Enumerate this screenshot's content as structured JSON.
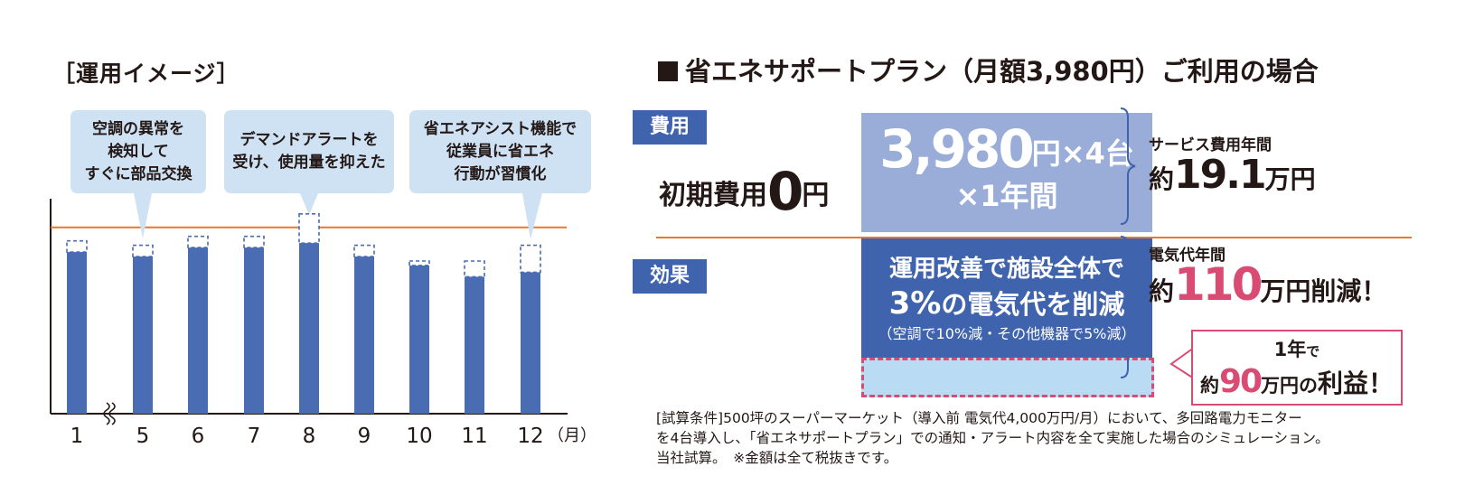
{
  "operation": {
    "title": "［運用イメージ］",
    "callouts": [
      {
        "lines": [
          "空調の異常を",
          "検知して",
          "すぐに部品交換"
        ]
      },
      {
        "lines": [
          "デマンドアラートを",
          "受け、使用量を抑えた"
        ]
      },
      {
        "lines": [
          "省エネアシスト機能で",
          "従業員に省エネ",
          "行動が習慣化"
        ]
      }
    ]
  },
  "chart_data": {
    "type": "bar",
    "title": "［運用イメージ］",
    "categories": [
      "1",
      "5",
      "6",
      "7",
      "8",
      "9",
      "10",
      "11",
      "12"
    ],
    "x_unit": "（月）",
    "axis_break": "between 1 and 5",
    "series": [
      {
        "name": "usage",
        "values": [
          72,
          70,
          74,
          74,
          76,
          70,
          66,
          61,
          63
        ],
        "color": "#4a6cb3"
      },
      {
        "name": "before_improvement_dashed",
        "values": [
          77,
          75,
          79,
          79,
          89,
          75,
          68,
          68,
          75
        ],
        "color": "#4a6cb3"
      }
    ],
    "reference_line": {
      "value": 83,
      "color": "#e8782a"
    },
    "ylim": [
      0,
      100
    ]
  },
  "plan": {
    "title": "省エネサポートプラン（月額3,980円）ご利用の場合",
    "cost_tag": "費用",
    "initial_label": "初期費用",
    "initial_amount": "0",
    "initial_unit": "円",
    "monthly_price": "3,980",
    "monthly_suffix": "円×4台",
    "period": "×1年間",
    "service_label": "サービス費用年間",
    "service_prefix": "約",
    "service_amount": "19.1",
    "service_unit": "万円",
    "effect_tag": "効果",
    "effect_line1": "運用改善で施設全体で",
    "effect_pct": "3%",
    "effect_line2_suffix": "の電気代を削減",
    "effect_note": "（空調で10%減・その他機器で5%減）",
    "elec_label": "電気代年間",
    "elec_prefix": "約",
    "elec_amount": "110",
    "elec_suffix": "万円削減！",
    "profit_line1_a": "1年",
    "profit_line1_b": "で",
    "profit_prefix": "約",
    "profit_amount": "90",
    "profit_unit": "万円",
    "profit_no": "の",
    "profit_tail": "利益！"
  },
  "note": {
    "lines": [
      "[試算条件]500坪のスーパーマーケット（導入前 電気代4,000万円/月）において、多回路電力モニター",
      "を4台導入し、「省エネサポートプラン」での通知・アラート内容を全て実施した場合のシミュレーション。",
      "当社試算。　※金額は全て税抜きです。"
    ]
  },
  "colors": {
    "bar": "#4a6cb3",
    "reference": "#e8782a",
    "tag": "#3f63ad",
    "cost_box": "#9aacd8",
    "callout_bg": "#cfe2f3",
    "accent_pink": "#d94b73",
    "profit_fill": "#b9dbf4"
  }
}
